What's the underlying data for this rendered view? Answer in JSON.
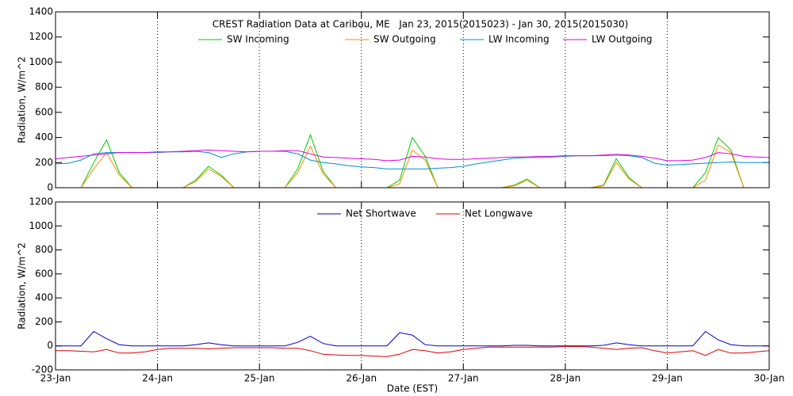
{
  "chart_data": [
    {
      "type": "line",
      "title": "CREST Radiation Data at Caribou, ME   Jan 23, 2015(2015023) - Jan 30, 2015(2015030)",
      "ylabel": "Radiation, W/m^2",
      "x": [
        23,
        23.125,
        23.25,
        23.375,
        23.5,
        23.625,
        23.75,
        23.875,
        24,
        24.125,
        24.25,
        24.375,
        24.5,
        24.625,
        24.75,
        24.875,
        25,
        25.125,
        25.25,
        25.375,
        25.5,
        25.625,
        25.75,
        25.875,
        26,
        26.125,
        26.25,
        26.375,
        26.5,
        26.625,
        26.75,
        26.875,
        27,
        27.125,
        27.25,
        27.375,
        27.5,
        27.625,
        27.75,
        27.875,
        28,
        28.125,
        28.25,
        28.375,
        28.5,
        28.625,
        28.75,
        28.875,
        29,
        29.125,
        29.25,
        29.375,
        29.5,
        29.625,
        29.75,
        29.875,
        30
      ],
      "xlim": [
        23,
        30
      ],
      "xticks": [
        23,
        24,
        25,
        26,
        27,
        28,
        29,
        30
      ],
      "ylim": [
        0,
        1400
      ],
      "yticks": [
        0,
        200,
        400,
        600,
        800,
        1000,
        1200,
        1400
      ],
      "grid": true,
      "series": [
        {
          "name": "SW Incoming",
          "color": "#00cc00",
          "values": [
            0,
            0,
            0,
            200,
            380,
            120,
            0,
            0,
            0,
            0,
            0,
            60,
            170,
            100,
            0,
            0,
            0,
            0,
            0,
            150,
            420,
            130,
            0,
            0,
            0,
            0,
            0,
            60,
            400,
            250,
            0,
            0,
            0,
            0,
            0,
            0,
            20,
            70,
            0,
            0,
            0,
            0,
            0,
            20,
            230,
            80,
            0,
            0,
            0,
            0,
            0,
            120,
            400,
            300,
            0,
            0,
            0
          ]
        },
        {
          "name": "SW Outgoing",
          "color": "#ff8c00",
          "values": [
            0,
            0,
            0,
            150,
            280,
            100,
            0,
            0,
            0,
            0,
            0,
            50,
            150,
            90,
            0,
            0,
            0,
            0,
            0,
            120,
            330,
            110,
            0,
            0,
            0,
            0,
            0,
            30,
            300,
            220,
            0,
            0,
            0,
            0,
            0,
            0,
            15,
            60,
            0,
            0,
            0,
            0,
            0,
            15,
            200,
            70,
            0,
            0,
            0,
            0,
            0,
            60,
            340,
            280,
            0,
            0,
            0
          ]
        },
        {
          "name": "LW Incoming",
          "color": "#0090d0",
          "values": [
            190,
            195,
            220,
            270,
            280,
            280,
            280,
            280,
            280,
            285,
            285,
            290,
            280,
            240,
            270,
            285,
            290,
            290,
            290,
            270,
            220,
            200,
            190,
            175,
            165,
            160,
            150,
            150,
            150,
            150,
            155,
            160,
            170,
            190,
            205,
            220,
            235,
            240,
            240,
            245,
            250,
            255,
            255,
            255,
            260,
            255,
            240,
            195,
            180,
            185,
            190,
            195,
            200,
            205,
            200,
            200,
            200
          ]
        },
        {
          "name": "LW Outgoing",
          "color": "#e000e0",
          "values": [
            230,
            240,
            250,
            260,
            270,
            280,
            280,
            280,
            285,
            285,
            290,
            295,
            300,
            295,
            290,
            285,
            290,
            290,
            295,
            295,
            270,
            245,
            240,
            235,
            230,
            225,
            215,
            220,
            250,
            245,
            230,
            225,
            225,
            230,
            235,
            240,
            245,
            245,
            250,
            250,
            255,
            255,
            255,
            260,
            265,
            260,
            250,
            235,
            215,
            215,
            220,
            240,
            280,
            270,
            250,
            245,
            240
          ]
        }
      ]
    },
    {
      "type": "line",
      "ylabel": "Radiation, W/m^2",
      "xlabel": "Date (EST)",
      "x": [
        23,
        23.125,
        23.25,
        23.375,
        23.5,
        23.625,
        23.75,
        23.875,
        24,
        24.125,
        24.25,
        24.375,
        24.5,
        24.625,
        24.75,
        24.875,
        25,
        25.125,
        25.25,
        25.375,
        25.5,
        25.625,
        25.75,
        25.875,
        26,
        26.125,
        26.25,
        26.375,
        26.5,
        26.625,
        26.75,
        26.875,
        27,
        27.125,
        27.25,
        27.375,
        27.5,
        27.625,
        27.75,
        27.875,
        28,
        28.125,
        28.25,
        28.375,
        28.5,
        28.625,
        28.75,
        28.875,
        29,
        29.125,
        29.25,
        29.375,
        29.5,
        29.625,
        29.75,
        29.875,
        30
      ],
      "xlim": [
        23,
        30
      ],
      "xticks": [
        {
          "value": 23,
          "label": "23-Jan"
        },
        {
          "value": 24,
          "label": "24-Jan"
        },
        {
          "value": 25,
          "label": "25-Jan"
        },
        {
          "value": 26,
          "label": "26-Jan"
        },
        {
          "value": 27,
          "label": "27-Jan"
        },
        {
          "value": 28,
          "label": "28-Jan"
        },
        {
          "value": 29,
          "label": "29-Jan"
        },
        {
          "value": 30,
          "label": "30-Jan"
        }
      ],
      "ylim": [
        -200,
        1200
      ],
      "yticks": [
        -200,
        0,
        200,
        400,
        600,
        800,
        1000,
        1200
      ],
      "grid": true,
      "series": [
        {
          "name": "Net Shortwave",
          "color": "#0000cc",
          "values": [
            0,
            0,
            0,
            120,
            60,
            10,
            0,
            0,
            0,
            0,
            0,
            10,
            25,
            10,
            0,
            0,
            0,
            0,
            0,
            30,
            80,
            20,
            0,
            0,
            0,
            0,
            0,
            110,
            90,
            10,
            0,
            0,
            0,
            0,
            0,
            0,
            5,
            5,
            0,
            0,
            0,
            0,
            0,
            5,
            25,
            10,
            0,
            0,
            0,
            0,
            0,
            120,
            50,
            10,
            0,
            0,
            0
          ]
        },
        {
          "name": "Net Longwave",
          "color": "#dd0000",
          "values": [
            -40,
            -40,
            -45,
            -50,
            -30,
            -60,
            -60,
            -50,
            -30,
            -20,
            -20,
            -20,
            -25,
            -20,
            -15,
            -15,
            -15,
            -15,
            -20,
            -20,
            -40,
            -70,
            -75,
            -80,
            -80,
            -85,
            -90,
            -70,
            -30,
            -40,
            -60,
            -50,
            -30,
            -20,
            -10,
            -10,
            -10,
            -10,
            -10,
            -10,
            -5,
            -5,
            -10,
            -20,
            -30,
            -20,
            -15,
            -40,
            -60,
            -50,
            -40,
            -80,
            -30,
            -60,
            -60,
            -50,
            -40
          ]
        }
      ]
    }
  ]
}
